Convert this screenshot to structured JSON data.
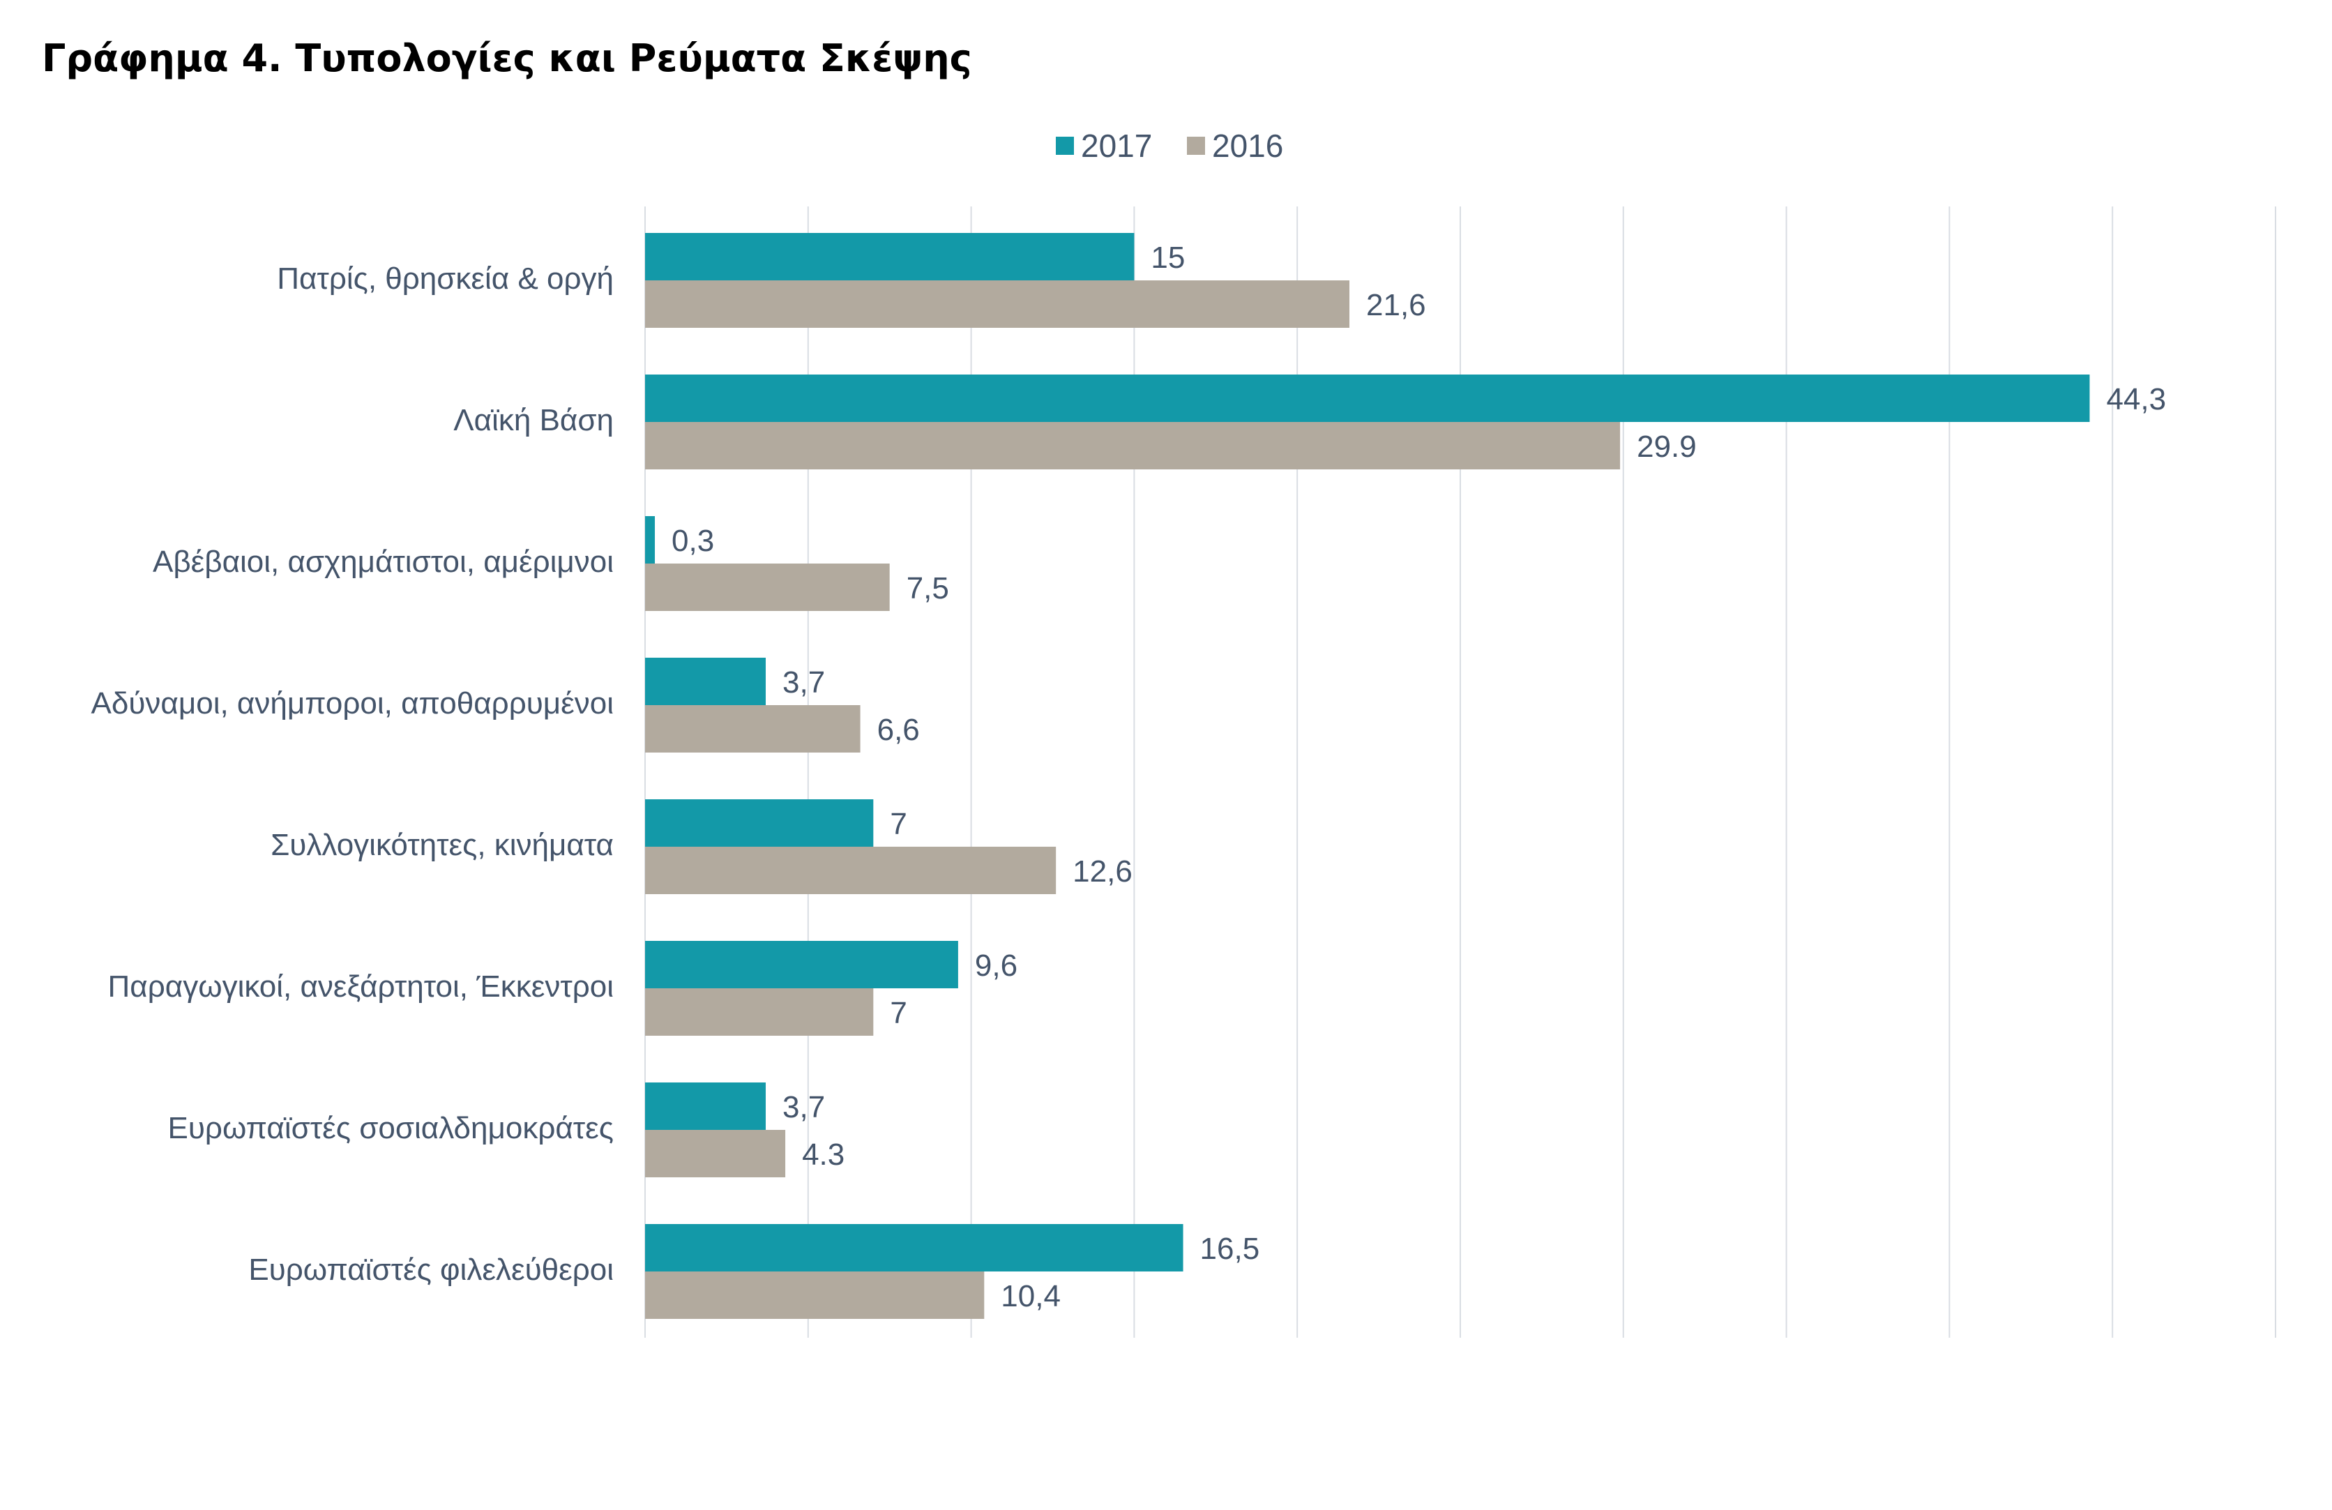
{
  "title": "Γράφημα 4. Τυπολογίες και Ρεύματα Σκέψης",
  "chart_data": {
    "type": "bar",
    "orientation": "horizontal",
    "title": "Γράφημα 4. Τυπολογίες και Ρεύματα Σκέψης",
    "xlabel": "",
    "ylabel": "",
    "xlim": [
      0,
      50
    ],
    "grid": true,
    "legend_position": "top-center",
    "categories": [
      "Πατρίς, θρησκεία & οργή",
      "Λαϊκή Βάση",
      "Αβέβαιοι, ασχημάτιστοι, αμέριμνοι",
      "Αδύναμοι, ανήμποροι, αποθαρρυμένοι",
      "Συλλογικότητες, κινήματα",
      "Παραγωγικοί, ανεξάρτητοι, Έκκεντροι",
      "Ευρωπαϊστές σοσιαλδημοκράτες",
      "Ευρωπαϊστές φιλελεύθεροι"
    ],
    "series": [
      {
        "name": "2017",
        "color": "#1399a8",
        "values": [
          15,
          44.3,
          0.3,
          3.7,
          7,
          9.6,
          3.7,
          16.5
        ],
        "labels": [
          "15",
          "44,3",
          "0,3",
          "3,7",
          "7",
          "9,6",
          "3,7",
          "16,5"
        ]
      },
      {
        "name": "2016",
        "color": "#b2aa9e",
        "values": [
          21.6,
          29.9,
          7.5,
          6.6,
          12.6,
          7,
          4.3,
          10.4
        ],
        "labels": [
          "21,6",
          "29.9",
          "7,5",
          "6,6",
          "12,6",
          "7",
          "4.3",
          "10,4"
        ]
      }
    ]
  }
}
